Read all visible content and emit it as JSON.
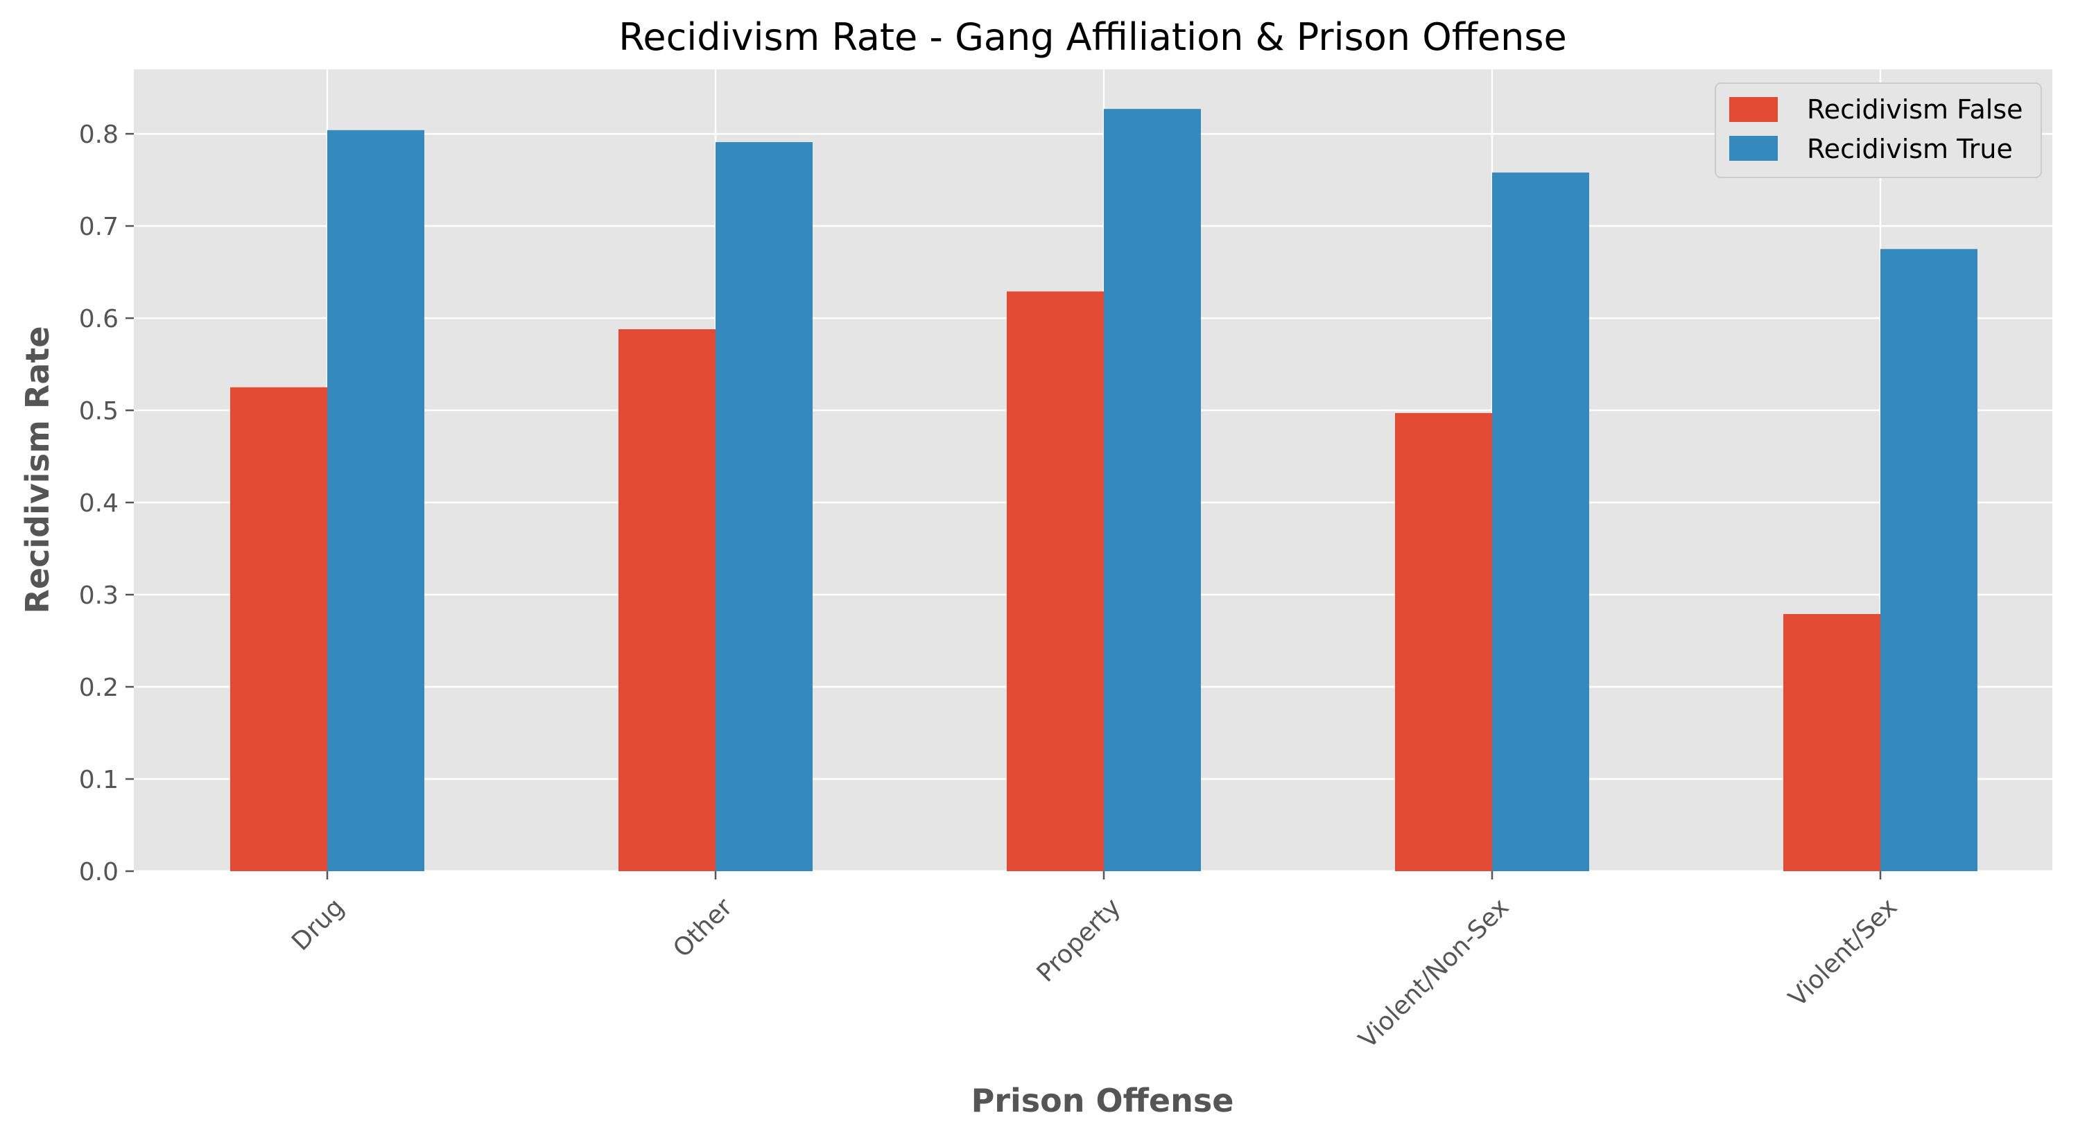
{
  "chart_data": {
    "type": "bar",
    "title": "Recidivism Rate - Gang Affiliation & Prison Offense",
    "xlabel": "Prison Offense",
    "ylabel": "Recidivism Rate",
    "categories": [
      "Drug",
      "Other",
      "Property",
      "Violent/Non-Sex",
      "Violent/Sex"
    ],
    "series": [
      {
        "name": "Recidivism False",
        "color": "#E24A33",
        "values": [
          0.525,
          0.588,
          0.629,
          0.497,
          0.279
        ]
      },
      {
        "name": "Recidivism True",
        "color": "#348ABD",
        "values": [
          0.804,
          0.791,
          0.827,
          0.758,
          0.675
        ]
      }
    ],
    "ylim": [
      0,
      0.87
    ],
    "yticks": [
      0.0,
      0.1,
      0.2,
      0.3,
      0.4,
      0.5,
      0.6,
      0.7,
      0.8
    ],
    "ytick_labels": [
      "0.0",
      "0.1",
      "0.2",
      "0.3",
      "0.4",
      "0.5",
      "0.6",
      "0.7",
      "0.8"
    ],
    "grid": true,
    "legend_position": "top-right",
    "plot_background": "#E5E5E5",
    "grid_color": "#FFFFFF"
  }
}
